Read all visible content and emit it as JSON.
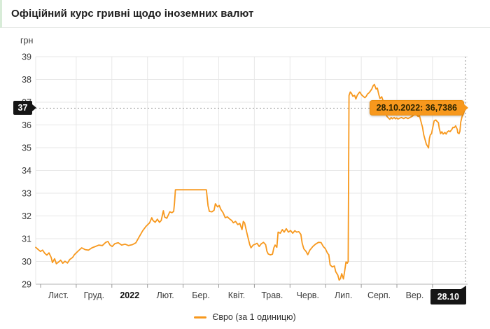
{
  "header": {
    "title": "Офіційний курс гривні щодо іноземних валют"
  },
  "colors": {
    "accent_orange": "#f7981d",
    "badge_black": "#151515",
    "grid": "#e7e7e7",
    "axis_text": "#3c3c3c",
    "dashed_marker": "#8f8f8f"
  },
  "chart_data": {
    "type": "line",
    "title": "Офіційний курс гривні щодо іноземних валют",
    "ylabel": "грн",
    "xlabel": "",
    "ylim": [
      29,
      39
    ],
    "y_ticks": [
      39,
      38,
      37,
      36,
      35,
      34,
      33,
      32,
      31,
      30,
      29
    ],
    "x_tick_labels": [
      "Лист.",
      "Груд.",
      "2022",
      "Лют.",
      "Бер.",
      "Квіт.",
      "Трав.",
      "Черв.",
      "Лип.",
      "Серп.",
      "Вер."
    ],
    "x_bold_label": "2022",
    "grid": true,
    "legend_position": "bottom",
    "highlight": {
      "tooltip_label": "28.10.2022: 36,7386",
      "value": 36.7386,
      "value_label": "37",
      "date_label": "28.10"
    },
    "series": [
      {
        "name": "Євро (за 1 одиницю)",
        "color": "#f7981d",
        "points": [
          [
            0,
            30.62
          ],
          [
            0.006,
            30.52
          ],
          [
            0.011,
            30.44
          ],
          [
            0.016,
            30.5
          ],
          [
            0.021,
            30.36
          ],
          [
            0.026,
            30.28
          ],
          [
            0.031,
            30.38
          ],
          [
            0.036,
            30.18
          ],
          [
            0.039,
            29.95
          ],
          [
            0.044,
            30.12
          ],
          [
            0.048,
            29.9
          ],
          [
            0.053,
            29.97
          ],
          [
            0.058,
            30.06
          ],
          [
            0.063,
            29.92
          ],
          [
            0.068,
            30.01
          ],
          [
            0.074,
            29.93
          ],
          [
            0.079,
            30.08
          ],
          [
            0.086,
            30.18
          ],
          [
            0.09,
            30.3
          ],
          [
            0.099,
            30.46
          ],
          [
            0.107,
            30.6
          ],
          [
            0.115,
            30.52
          ],
          [
            0.123,
            30.5
          ],
          [
            0.131,
            30.6
          ],
          [
            0.139,
            30.66
          ],
          [
            0.147,
            30.72
          ],
          [
            0.155,
            30.7
          ],
          [
            0.163,
            30.84
          ],
          [
            0.168,
            30.88
          ],
          [
            0.173,
            30.72
          ],
          [
            0.178,
            30.66
          ],
          [
            0.184,
            30.78
          ],
          [
            0.192,
            30.82
          ],
          [
            0.2,
            30.72
          ],
          [
            0.208,
            30.76
          ],
          [
            0.216,
            30.7
          ],
          [
            0.225,
            30.74
          ],
          [
            0.233,
            30.82
          ],
          [
            0.241,
            31.09
          ],
          [
            0.249,
            31.35
          ],
          [
            0.257,
            31.55
          ],
          [
            0.265,
            31.7
          ],
          [
            0.27,
            31.92
          ],
          [
            0.273,
            31.8
          ],
          [
            0.278,
            31.72
          ],
          [
            0.283,
            31.86
          ],
          [
            0.288,
            31.72
          ],
          [
            0.292,
            31.8
          ],
          [
            0.297,
            32.23
          ],
          [
            0.3,
            31.95
          ],
          [
            0.305,
            31.9
          ],
          [
            0.312,
            32.18
          ],
          [
            0.317,
            32.14
          ],
          [
            0.321,
            32.2
          ],
          [
            0.323,
            32.57
          ],
          [
            0.325,
            33.15
          ],
          [
            0.397,
            33.15
          ],
          [
            0.401,
            32.45
          ],
          [
            0.404,
            32.2
          ],
          [
            0.41,
            32.18
          ],
          [
            0.415,
            32.25
          ],
          [
            0.418,
            32.54
          ],
          [
            0.423,
            32.4
          ],
          [
            0.427,
            32.46
          ],
          [
            0.431,
            32.28
          ],
          [
            0.436,
            32.14
          ],
          [
            0.441,
            31.92
          ],
          [
            0.446,
            31.96
          ],
          [
            0.451,
            31.87
          ],
          [
            0.456,
            31.8
          ],
          [
            0.46,
            31.7
          ],
          [
            0.465,
            31.76
          ],
          [
            0.47,
            31.62
          ],
          [
            0.475,
            31.67
          ],
          [
            0.48,
            31.4
          ],
          [
            0.483,
            31.76
          ],
          [
            0.486,
            31.7
          ],
          [
            0.491,
            31.28
          ],
          [
            0.494,
            31.05
          ],
          [
            0.498,
            30.74
          ],
          [
            0.501,
            30.6
          ],
          [
            0.506,
            30.72
          ],
          [
            0.511,
            30.76
          ],
          [
            0.515,
            30.8
          ],
          [
            0.52,
            30.66
          ],
          [
            0.525,
            30.78
          ],
          [
            0.53,
            30.84
          ],
          [
            0.535,
            30.74
          ],
          [
            0.538,
            30.45
          ],
          [
            0.541,
            30.33
          ],
          [
            0.546,
            30.29
          ],
          [
            0.551,
            30.32
          ],
          [
            0.554,
            30.6
          ],
          [
            0.557,
            30.72
          ],
          [
            0.561,
            30.62
          ],
          [
            0.564,
            31.29
          ],
          [
            0.569,
            31.24
          ],
          [
            0.574,
            31.4
          ],
          [
            0.578,
            31.29
          ],
          [
            0.583,
            31.44
          ],
          [
            0.588,
            31.29
          ],
          [
            0.593,
            31.36
          ],
          [
            0.598,
            31.24
          ],
          [
            0.603,
            31.35
          ],
          [
            0.607,
            31.29
          ],
          [
            0.612,
            31.31
          ],
          [
            0.617,
            31.19
          ],
          [
            0.62,
            30.8
          ],
          [
            0.624,
            30.55
          ],
          [
            0.629,
            30.44
          ],
          [
            0.633,
            30.3
          ],
          [
            0.638,
            30.5
          ],
          [
            0.645,
            30.66
          ],
          [
            0.651,
            30.76
          ],
          [
            0.658,
            30.84
          ],
          [
            0.664,
            30.83
          ],
          [
            0.669,
            30.66
          ],
          [
            0.674,
            30.56
          ],
          [
            0.679,
            30.36
          ],
          [
            0.682,
            30.3
          ],
          [
            0.685,
            29.85
          ],
          [
            0.69,
            29.76
          ],
          [
            0.695,
            29.8
          ],
          [
            0.698,
            29.55
          ],
          [
            0.703,
            29.4
          ],
          [
            0.706,
            29.18
          ],
          [
            0.709,
            29.24
          ],
          [
            0.712,
            29.46
          ],
          [
            0.716,
            29.23
          ],
          [
            0.719,
            29.6
          ],
          [
            0.722,
            29.98
          ],
          [
            0.725,
            29.92
          ],
          [
            0.727,
            30.0
          ],
          [
            0.729,
            37.29
          ],
          [
            0.732,
            37.45
          ],
          [
            0.735,
            37.38
          ],
          [
            0.738,
            37.26
          ],
          [
            0.742,
            37.3
          ],
          [
            0.745,
            37.14
          ],
          [
            0.748,
            37.3
          ],
          [
            0.751,
            37.38
          ],
          [
            0.754,
            37.45
          ],
          [
            0.758,
            37.33
          ],
          [
            0.763,
            37.24
          ],
          [
            0.766,
            37.2
          ],
          [
            0.769,
            37.26
          ],
          [
            0.772,
            37.36
          ],
          [
            0.776,
            37.42
          ],
          [
            0.779,
            37.5
          ],
          [
            0.782,
            37.58
          ],
          [
            0.785,
            37.72
          ],
          [
            0.788,
            37.78
          ],
          [
            0.792,
            37.58
          ],
          [
            0.795,
            37.62
          ],
          [
            0.798,
            37.35
          ],
          [
            0.801,
            37.16
          ],
          [
            0.805,
            37.24
          ],
          [
            0.808,
            37.08
          ],
          [
            0.811,
            36.8
          ],
          [
            0.814,
            36.54
          ],
          [
            0.817,
            36.38
          ],
          [
            0.821,
            36.3
          ],
          [
            0.824,
            36.25
          ],
          [
            0.827,
            36.33
          ],
          [
            0.83,
            36.27
          ],
          [
            0.834,
            36.33
          ],
          [
            0.837,
            36.27
          ],
          [
            0.84,
            36.31
          ],
          [
            0.843,
            36.26
          ],
          [
            0.847,
            36.3
          ],
          [
            0.851,
            36.33
          ],
          [
            0.856,
            36.28
          ],
          [
            0.861,
            36.33
          ],
          [
            0.866,
            36.28
          ],
          [
            0.871,
            36.33
          ],
          [
            0.876,
            36.38
          ],
          [
            0.88,
            36.44
          ],
          [
            0.884,
            36.48
          ],
          [
            0.887,
            36.42
          ],
          [
            0.89,
            36.37
          ],
          [
            0.893,
            36.4
          ],
          [
            0.897,
            36.1
          ],
          [
            0.9,
            35.9
          ],
          [
            0.903,
            35.56
          ],
          [
            0.906,
            35.35
          ],
          [
            0.909,
            35.15
          ],
          [
            0.913,
            35.02
          ],
          [
            0.914,
            34.99
          ],
          [
            0.916,
            35.4
          ],
          [
            0.918,
            35.56
          ],
          [
            0.921,
            35.62
          ],
          [
            0.924,
            35.9
          ],
          [
            0.927,
            36.18
          ],
          [
            0.931,
            36.22
          ],
          [
            0.934,
            36.15
          ],
          [
            0.937,
            36.1
          ],
          [
            0.939,
            35.85
          ],
          [
            0.942,
            35.62
          ],
          [
            0.945,
            35.7
          ],
          [
            0.948,
            35.6
          ],
          [
            0.952,
            35.67
          ],
          [
            0.955,
            35.6
          ],
          [
            0.958,
            35.7
          ],
          [
            0.961,
            35.74
          ],
          [
            0.964,
            35.7
          ],
          [
            0.968,
            35.8
          ],
          [
            0.971,
            35.9
          ],
          [
            0.974,
            35.88
          ],
          [
            0.977,
            35.96
          ],
          [
            0.981,
            35.8
          ],
          [
            0.982,
            35.66
          ],
          [
            0.985,
            35.62
          ],
          [
            0.987,
            35.72
          ],
          [
            0.989,
            36.12
          ],
          [
            0.992,
            36.37
          ],
          [
            0.995,
            36.48
          ],
          [
            0.998,
            36.65
          ],
          [
            1,
            36.7386
          ]
        ]
      }
    ]
  }
}
